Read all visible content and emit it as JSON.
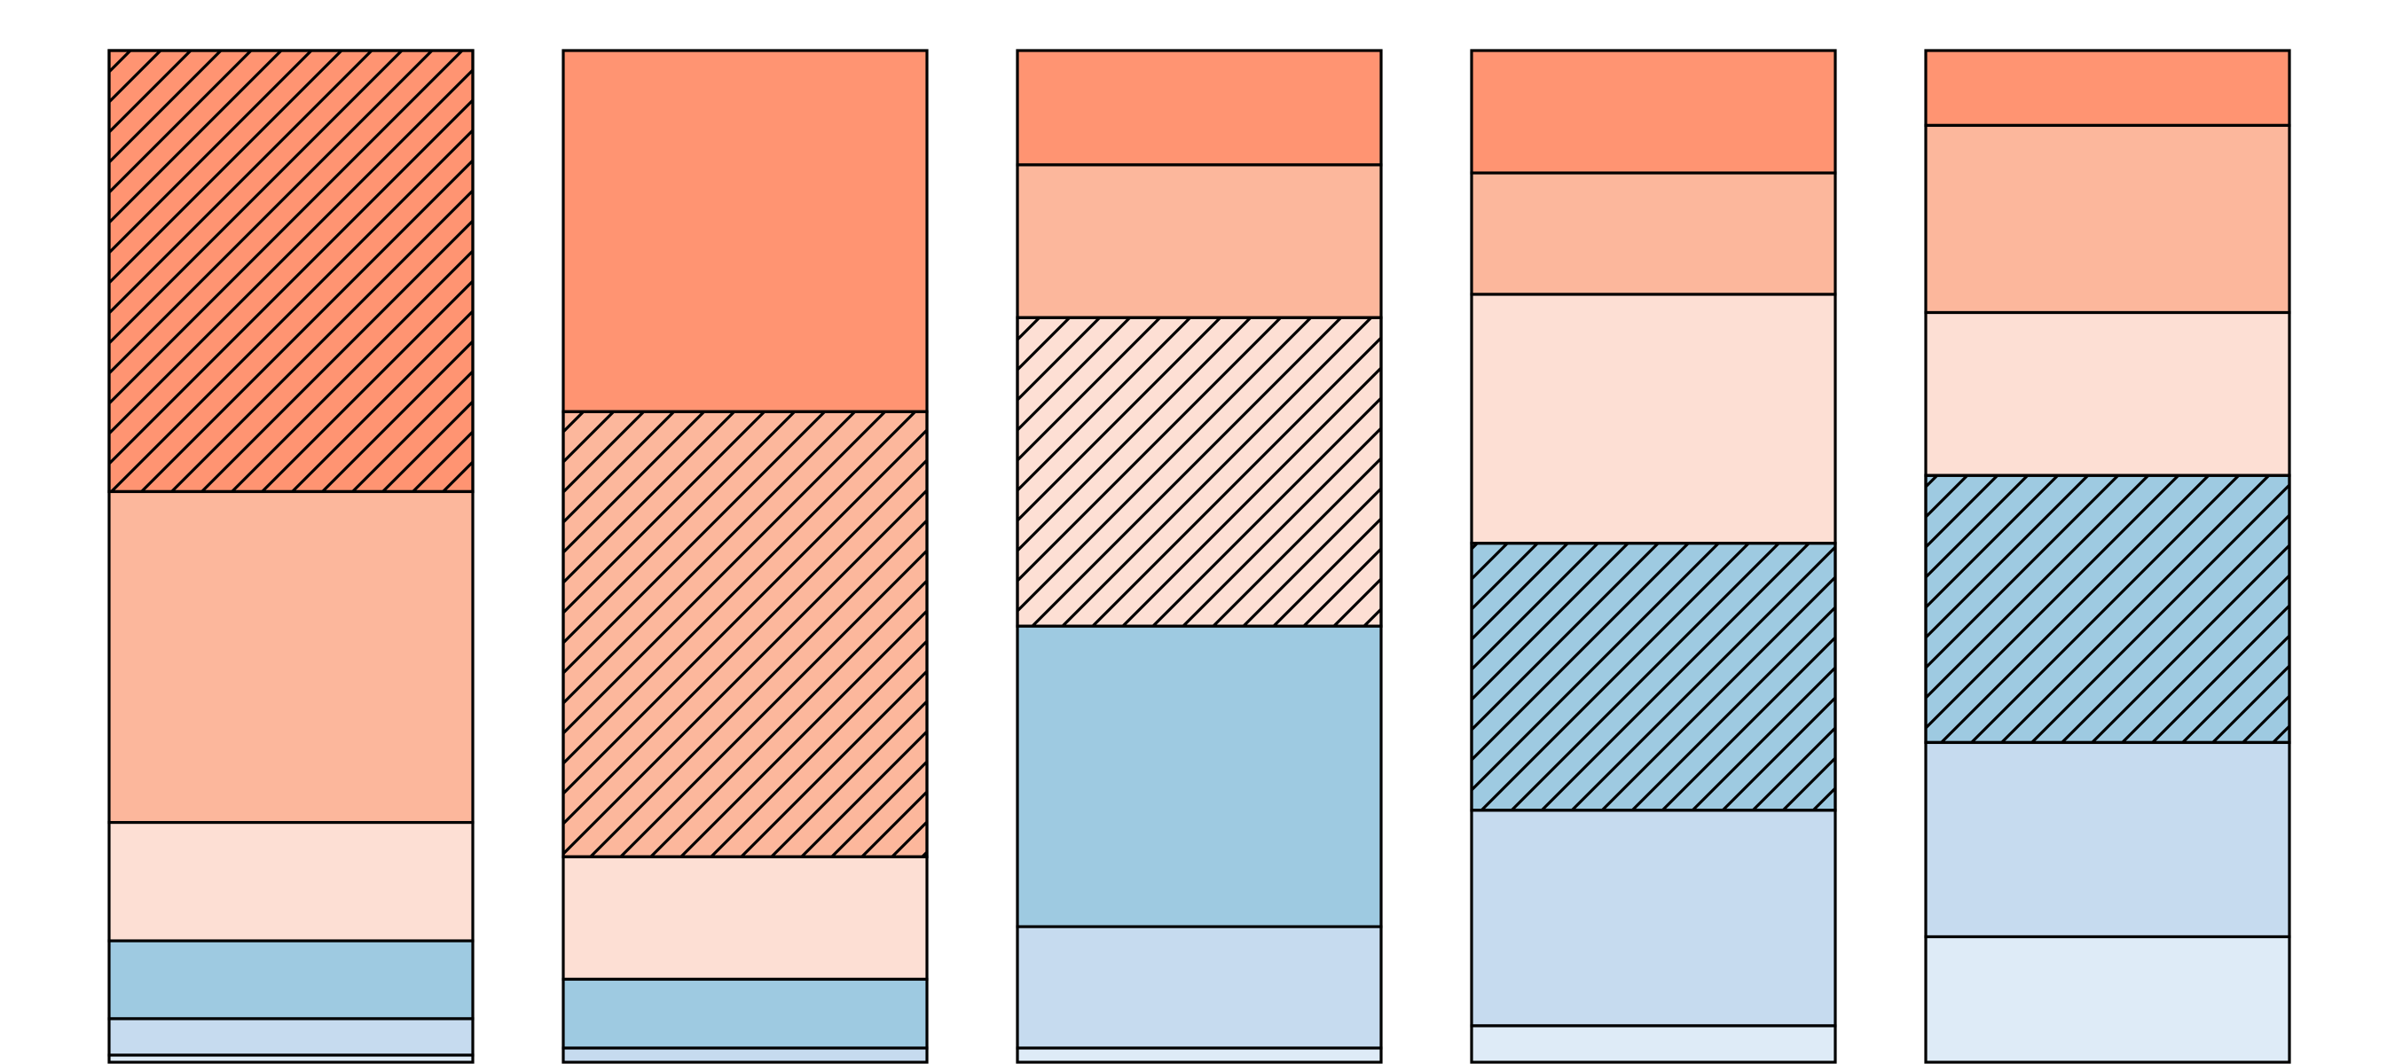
{
  "chart_data": {
    "type": "bar",
    "stacked": true,
    "normalized": true,
    "orientation": "vertical",
    "categories": [
      "",
      "",
      "",
      "",
      ""
    ],
    "series": [
      {
        "fill": "#ff9472",
        "hatched": [
          true,
          false,
          false,
          false,
          false
        ],
        "values": [
          0.436,
          0.357,
          0.113,
          0.121,
          0.074
        ]
      },
      {
        "fill": "#fcb79c",
        "hatched": [
          false,
          true,
          false,
          false,
          false
        ],
        "values": [
          0.327,
          0.44,
          0.151,
          0.12,
          0.185
        ]
      },
      {
        "fill": "#fddfd4",
        "hatched": [
          false,
          false,
          true,
          false,
          false
        ],
        "values": [
          0.117,
          0.121,
          0.305,
          0.246,
          0.161
        ]
      },
      {
        "fill": "#9ecae1",
        "hatched": [
          false,
          false,
          false,
          true,
          true
        ],
        "values": [
          0.077,
          0.068,
          0.297,
          0.264,
          0.264
        ]
      },
      {
        "fill": "#c6dbef",
        "hatched": [
          false,
          false,
          false,
          false,
          false
        ],
        "values": [
          0.036,
          0.014,
          0.12,
          0.213,
          0.192
        ]
      },
      {
        "fill": "#deebf7",
        "hatched": [
          false,
          false,
          false,
          false,
          false
        ],
        "values": [
          0.007,
          0.0,
          0.014,
          0.036,
          0.124
        ]
      }
    ],
    "ylim": [
      0,
      1
    ],
    "grid": false,
    "legend": "none",
    "axes_visible": false,
    "title": "",
    "xlabel": "",
    "ylabel": ""
  }
}
